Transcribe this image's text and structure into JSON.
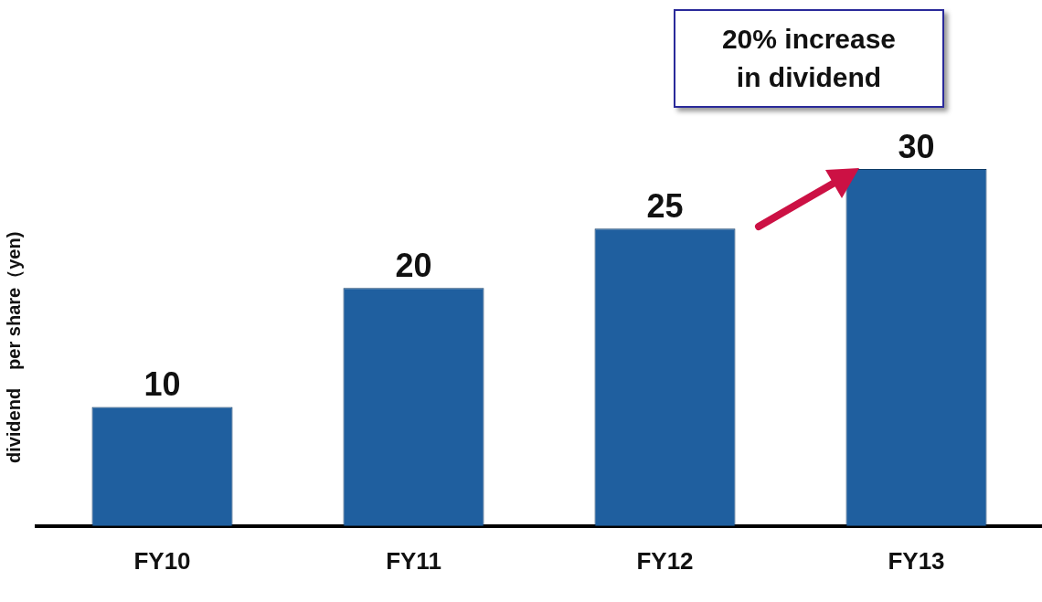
{
  "chart_data": {
    "type": "bar",
    "ylabel": "dividend　per share（yen)",
    "categories": [
      "FY10",
      "FY11",
      "FY12",
      "FY13"
    ],
    "values": [
      10,
      20,
      25,
      30
    ],
    "color": "#1f5f9f",
    "data_labels": true,
    "grid": false,
    "legend": false,
    "annotations": [
      "20% increase\nin dividend"
    ]
  }
}
